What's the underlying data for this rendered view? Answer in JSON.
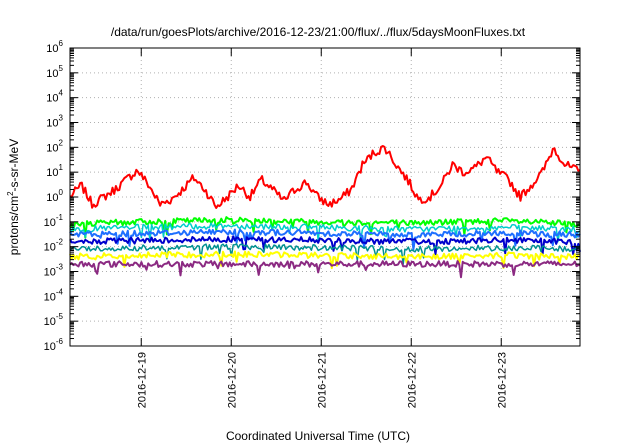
{
  "chart_data": {
    "type": "line",
    "title": "/data/run/goesPlots/archive/2016-12-23/21:00/flux/../flux/5daysMoonFluxes.txt",
    "xlabel": "Coordinated Universal Time (UTC)",
    "ylabel_prefix": "protons/cm",
    "ylabel_exp": "2",
    "ylabel_suffix": "-s-sr-MeV",
    "y_scale": "log",
    "ylim": [
      1e-06,
      1000000.0
    ],
    "xlim": [
      "2016-12-18 05:00",
      "2016-12-23 21:00"
    ],
    "grid": true,
    "legend": "none",
    "x_ticks": [
      {
        "value": "2016-12-19 00:00",
        "label": "2016-12-19"
      },
      {
        "value": "2016-12-20 00:00",
        "label": "2016-12-20"
      },
      {
        "value": "2016-12-21 00:00",
        "label": "2016-12-21"
      },
      {
        "value": "2016-12-22 00:00",
        "label": "2016-12-22"
      },
      {
        "value": "2016-12-23 00:00",
        "label": "2016-12-23"
      }
    ],
    "y_ticks": [
      {
        "value": 1e-06,
        "base": "10",
        "exp": "-6"
      },
      {
        "value": 1e-05,
        "base": "10",
        "exp": "-5"
      },
      {
        "value": 0.0001,
        "base": "10",
        "exp": "-4"
      },
      {
        "value": 0.001,
        "base": "10",
        "exp": "-3"
      },
      {
        "value": 0.01,
        "base": "10",
        "exp": "-2"
      },
      {
        "value": 0.1,
        "base": "10",
        "exp": "-1"
      },
      {
        "value": 1.0,
        "base": "10",
        "exp": "0"
      },
      {
        "value": 10.0,
        "base": "10",
        "exp": "1"
      },
      {
        "value": 100.0,
        "base": "10",
        "exp": "2"
      },
      {
        "value": 1000.0,
        "base": "10",
        "exp": "3"
      },
      {
        "value": 10000.0,
        "base": "10",
        "exp": "4"
      },
      {
        "value": 100000.0,
        "base": "10",
        "exp": "5"
      },
      {
        "value": 1000000.0,
        "base": "10",
        "exp": "6"
      }
    ],
    "series": [
      {
        "color": "#ff0000",
        "width": 2,
        "x": [
          "2016-12-18 05:00",
          "2016-12-18 08:00",
          "2016-12-18 11:00",
          "2016-12-18 14:00",
          "2016-12-18 17:00",
          "2016-12-18 20:00",
          "2016-12-18 23:00",
          "2016-12-19 02:00",
          "2016-12-19 05:00",
          "2016-12-19 08:00",
          "2016-12-19 11:00",
          "2016-12-19 14:00",
          "2016-12-19 17:00",
          "2016-12-19 20:00",
          "2016-12-19 23:00",
          "2016-12-20 02:00",
          "2016-12-20 05:00",
          "2016-12-20 08:00",
          "2016-12-20 11:00",
          "2016-12-20 14:00",
          "2016-12-20 17:00",
          "2016-12-20 20:00",
          "2016-12-20 23:00",
          "2016-12-21 02:00",
          "2016-12-21 05:00",
          "2016-12-21 08:00",
          "2016-12-21 11:00",
          "2016-12-21 14:00",
          "2016-12-21 17:00",
          "2016-12-21 20:00",
          "2016-12-21 23:00",
          "2016-12-22 02:00",
          "2016-12-22 05:00",
          "2016-12-22 08:00",
          "2016-12-22 11:00",
          "2016-12-22 14:00",
          "2016-12-22 17:00",
          "2016-12-22 20:00",
          "2016-12-22 23:00",
          "2016-12-23 02:00",
          "2016-12-23 05:00",
          "2016-12-23 08:00",
          "2016-12-23 11:00",
          "2016-12-23 14:00",
          "2016-12-23 17:00",
          "2016-12-23 21:00"
        ],
        "values": [
          1,
          3,
          0.5,
          1,
          2,
          5,
          12,
          3,
          0.5,
          0.8,
          2,
          6,
          2,
          0.4,
          1,
          3,
          1,
          5,
          2,
          0.7,
          2,
          4,
          1,
          0.5,
          0.8,
          2,
          20,
          60,
          100,
          20,
          5,
          0.8,
          1,
          3,
          20,
          10,
          15,
          40,
          10,
          5,
          1,
          3,
          10,
          100,
          20,
          10
        ]
      },
      {
        "color": "#00ff00",
        "width": 2,
        "x": [
          "2016-12-18 05:00",
          "2016-12-19 00:00",
          "2016-12-20 00:00",
          "2016-12-21 00:00",
          "2016-12-22 00:00",
          "2016-12-23 00:00",
          "2016-12-23 21:00"
        ],
        "values": [
          0.08,
          0.1,
          0.12,
          0.1,
          0.09,
          0.11,
          0.08
        ]
      },
      {
        "color": "#00cccc",
        "width": 1.5,
        "x": [
          "2016-12-18 05:00",
          "2016-12-19 00:00",
          "2016-12-20 00:00",
          "2016-12-21 00:00",
          "2016-12-22 00:00",
          "2016-12-23 00:00",
          "2016-12-23 21:00"
        ],
        "values": [
          0.05,
          0.06,
          0.07,
          0.06,
          0.05,
          0.06,
          0.05
        ]
      },
      {
        "color": "#1e6fff",
        "width": 2,
        "x": [
          "2016-12-18 05:00",
          "2016-12-19 00:00",
          "2016-12-20 00:00",
          "2016-12-21 00:00",
          "2016-12-22 00:00",
          "2016-12-23 00:00",
          "2016-12-23 21:00"
        ],
        "values": [
          0.03,
          0.035,
          0.04,
          0.035,
          0.03,
          0.035,
          0.03
        ]
      },
      {
        "color": "#0000cc",
        "width": 2,
        "x": [
          "2016-12-18 05:00",
          "2016-12-19 00:00",
          "2016-12-20 00:00",
          "2016-12-21 00:00",
          "2016-12-22 00:00",
          "2016-12-23 00:00",
          "2016-12-23 21:00"
        ],
        "values": [
          0.015,
          0.018,
          0.02,
          0.018,
          0.016,
          0.018,
          0.015
        ]
      },
      {
        "color": "#009090",
        "width": 1.5,
        "x": [
          "2016-12-18 05:00",
          "2016-12-19 00:00",
          "2016-12-20 00:00",
          "2016-12-21 00:00",
          "2016-12-22 00:00",
          "2016-12-23 00:00",
          "2016-12-23 21:00"
        ],
        "values": [
          0.008,
          0.009,
          0.01,
          0.009,
          0.008,
          0.009,
          0.008
        ]
      },
      {
        "color": "#ffff00",
        "width": 2,
        "x": [
          "2016-12-18 05:00",
          "2016-12-19 00:00",
          "2016-12-20 00:00",
          "2016-12-21 00:00",
          "2016-12-22 00:00",
          "2016-12-23 00:00",
          "2016-12-23 21:00"
        ],
        "values": [
          0.004,
          0.0045,
          0.005,
          0.0045,
          0.004,
          0.0045,
          0.004
        ]
      },
      {
        "color": "#8b2a82",
        "width": 2,
        "x": [
          "2016-12-18 05:00",
          "2016-12-19 00:00",
          "2016-12-20 00:00",
          "2016-12-21 00:00",
          "2016-12-22 00:00",
          "2016-12-23 00:00",
          "2016-12-23 21:00"
        ],
        "values": [
          0.002,
          0.002,
          0.002,
          0.002,
          0.002,
          0.002,
          0.002
        ]
      }
    ]
  }
}
